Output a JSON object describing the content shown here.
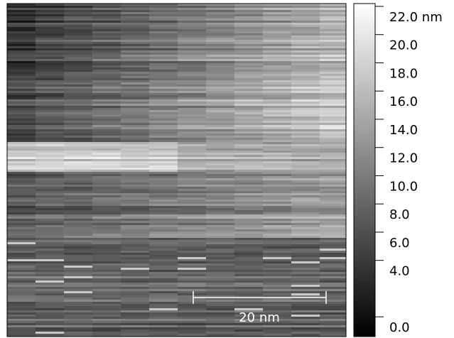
{
  "colorbar": {
    "lim": [
      -1.4,
      22.2
    ],
    "ticks": [
      {
        "value": 0,
        "label": "0.0"
      },
      {
        "value": 4,
        "label": "4.0"
      },
      {
        "value": 6,
        "label": "6.0"
      },
      {
        "value": 8,
        "label": "8.0"
      },
      {
        "value": 10,
        "label": "10.0"
      },
      {
        "value": 12,
        "label": "12.0"
      },
      {
        "value": 14,
        "label": "14.0"
      },
      {
        "value": 16,
        "label": "16.0"
      },
      {
        "value": 18,
        "label": "18.0"
      },
      {
        "value": 20,
        "label": "20.0"
      },
      {
        "value": 22,
        "label": "22.0 nm"
      }
    ]
  },
  "scale_bar": {
    "label": "20 nm"
  }
}
